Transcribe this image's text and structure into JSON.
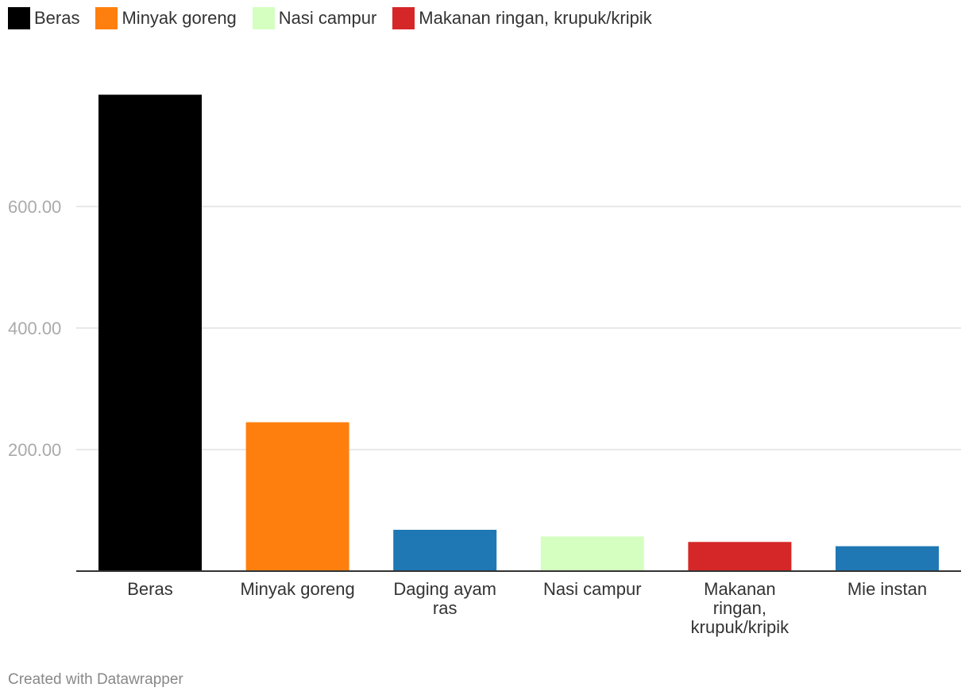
{
  "legend": [
    {
      "label": "Beras",
      "color": "#000000"
    },
    {
      "label": "Minyak goreng",
      "color": "#ff7f0e"
    },
    {
      "label": "Nasi campur",
      "color": "#d4ffc0"
    },
    {
      "label": "Makanan ringan, krupuk/kripik",
      "color": "#d62728"
    }
  ],
  "footer": "Created with Datawrapper",
  "chart_data": {
    "type": "bar",
    "title": "",
    "xlabel": "",
    "ylabel": "",
    "categories": [
      {
        "lines": [
          "Beras"
        ]
      },
      {
        "lines": [
          "Minyak goreng"
        ]
      },
      {
        "lines": [
          "Daging ayam",
          "ras"
        ]
      },
      {
        "lines": [
          "Nasi campur"
        ]
      },
      {
        "lines": [
          "Makanan",
          "ringan,",
          "krupuk/kripik"
        ]
      },
      {
        "lines": [
          "Mie instan"
        ]
      }
    ],
    "values": [
      784,
      245,
      68,
      57,
      48,
      41
    ],
    "colors": [
      "#000000",
      "#ff7f0e",
      "#1f77b4",
      "#d4ffc0",
      "#d62728",
      "#1f77b4"
    ],
    "yticks": [
      {
        "value": 200,
        "label": "200.00"
      },
      {
        "value": 400,
        "label": "400.00"
      },
      {
        "value": 600,
        "label": "600.00"
      }
    ],
    "ylim": [
      0,
      800
    ],
    "grid": true,
    "legend_position": "top-left"
  }
}
